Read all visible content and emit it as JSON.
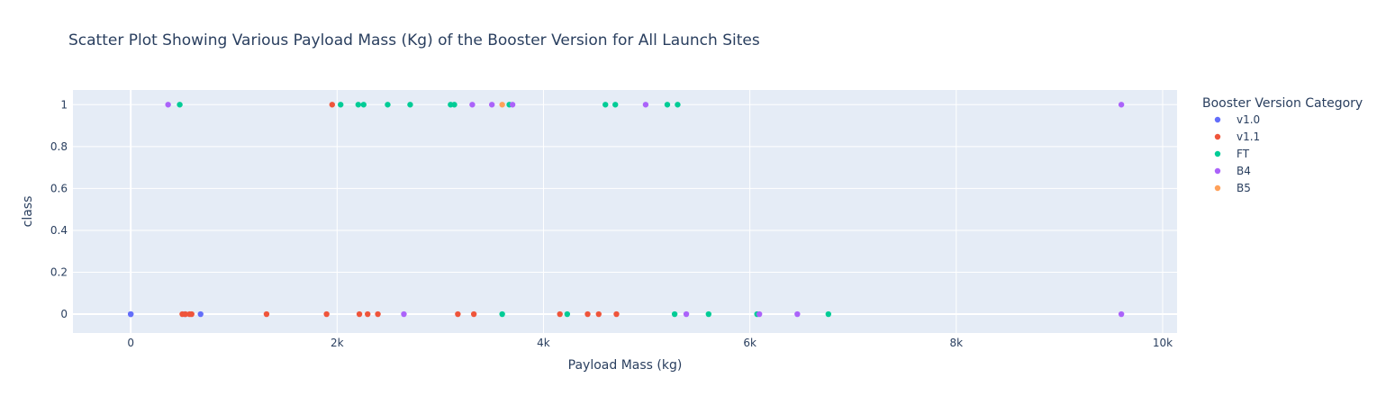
{
  "chart_data": {
    "type": "scatter",
    "title": "Scatter Plot Showing Various Payload Mass (Kg) of the Booster Version for All Launch Sites",
    "xlabel": "Payload Mass (kg)",
    "ylabel": "class",
    "xlim": [
      -560,
      10140
    ],
    "ylim": [
      -0.09,
      1.07
    ],
    "x_ticks": [
      0,
      2000,
      4000,
      6000,
      8000,
      10000
    ],
    "x_tick_labels": [
      "0",
      "2k",
      "4k",
      "6k",
      "8k",
      "10k"
    ],
    "y_ticks": [
      0,
      0.2,
      0.4,
      0.6,
      0.8,
      1
    ],
    "y_tick_labels": [
      "0",
      "0.2",
      "0.4",
      "0.6",
      "0.8",
      "1"
    ],
    "grid": true,
    "legend": {
      "title": "Booster Version Category",
      "position": "right"
    },
    "background": "#e5ecf6",
    "series": [
      {
        "name": "v1.0",
        "color": "#636efa",
        "x": [
          0,
          0,
          525,
          677
        ],
        "y": [
          0,
          0,
          0,
          0
        ]
      },
      {
        "name": "v1.1",
        "color": "#ef553b",
        "x": [
          500,
          530,
          570,
          590,
          1316,
          1898,
          1952,
          2216,
          2296,
          2395,
          3170,
          3325,
          4159,
          4428,
          4535,
          4707
        ],
        "y": [
          0,
          0,
          0,
          0,
          0,
          0,
          1,
          0,
          0,
          0,
          0,
          0,
          0,
          0,
          0,
          0
        ]
      },
      {
        "name": "FT",
        "color": "#00cc96",
        "x": [
          475,
          2034,
          2205,
          2257,
          2490,
          2708,
          3100,
          3136,
          3600,
          3669,
          4230,
          4600,
          4696,
          5200,
          5271,
          5300,
          5600,
          6070,
          6761
        ],
        "y": [
          1,
          1,
          1,
          1,
          1,
          1,
          1,
          1,
          0,
          1,
          0,
          1,
          1,
          1,
          0,
          1,
          0,
          0,
          0
        ]
      },
      {
        "name": "B4",
        "color": "#ab63fa",
        "x": [
          362,
          2647,
          3310,
          3500,
          3700,
          4990,
          5384,
          6092,
          6460,
          9600,
          9600
        ],
        "y": [
          1,
          0,
          1,
          1,
          1,
          1,
          0,
          0,
          0,
          1,
          0
        ]
      },
      {
        "name": "B5",
        "color": "#ffa15a",
        "x": [
          3600
        ],
        "y": [
          1
        ]
      }
    ]
  }
}
